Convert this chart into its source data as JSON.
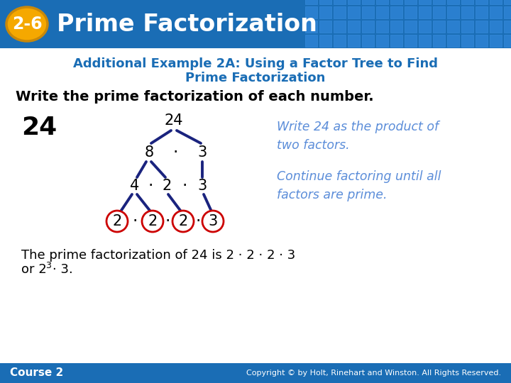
{
  "header_bg_color": "#1a6db5",
  "header_text": "Prime Factorization",
  "badge_text": "2-6",
  "badge_bg": "#f5a800",
  "subtitle_line1": "Additional Example 2A: Using a Factor Tree to Find",
  "subtitle_line2": "Prime Factorization",
  "subtitle_color": "#1a6db5",
  "instruction_text": "Write the prime factorization of each number.",
  "number_label": "24",
  "tree_color": "#1a237e",
  "circle_color": "#cc0000",
  "note1": "Write 24 as the product of\ntwo factors.",
  "note2": "Continue factoring until all\nfactors are prime.",
  "note_color": "#5b8dd9",
  "bottom_line1": "The prime factorization of 24 is 2 · 2 · 2 · 3",
  "footer_bg": "#1a6db5",
  "footer_left": "Course 2",
  "footer_right": "Copyright © by Holt, Rinehart and Winston. All Rights Reserved.",
  "bg_color": "#ffffff"
}
